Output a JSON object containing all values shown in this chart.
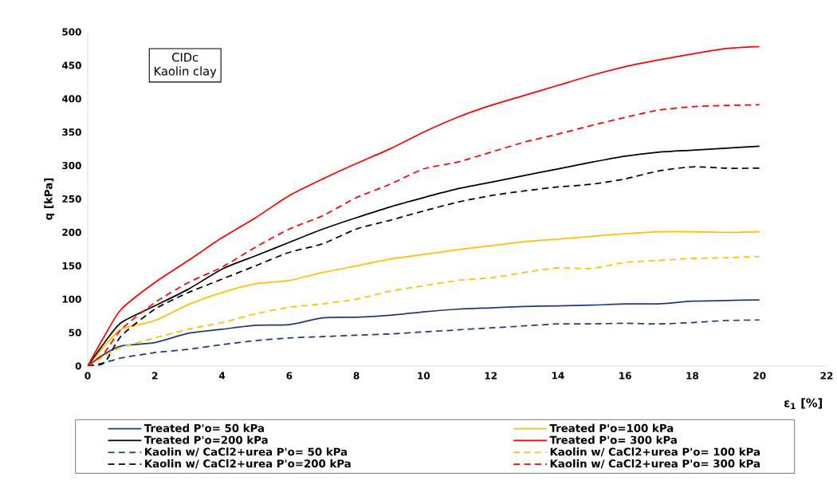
{
  "chart_data": {
    "type": "line",
    "xlabel": "ε$_{1}$ [%]",
    "ylabel": "q  [kPa]",
    "annotations": [
      "CIDc",
      "Kaolin clay"
    ],
    "x": [
      0,
      0.5,
      1,
      2,
      3,
      4,
      5,
      6,
      7,
      8,
      9,
      10,
      11,
      12,
      13,
      14,
      15,
      16,
      17,
      18,
      19,
      20
    ],
    "xlim": [
      0,
      22
    ],
    "xticks": [
      0,
      2,
      4,
      6,
      8,
      10,
      12,
      14,
      16,
      18,
      20,
      22
    ],
    "ylim": [
      0,
      500
    ],
    "yticks": [
      0,
      50,
      100,
      150,
      200,
      250,
      300,
      350,
      400,
      450,
      500
    ],
    "grid": false,
    "legend": "bottom",
    "marker": "none",
    "series": [
      {
        "name": "Treated P'o= 50 kPa",
        "color": "#1f3a7a",
        "line_style": "solid",
        "values": [
          0,
          18,
          30,
          35,
          49,
          55,
          61,
          62,
          72,
          73,
          76,
          81,
          85,
          87,
          89,
          90,
          91,
          93,
          93,
          97,
          98,
          99
        ]
      },
      {
        "name": "Treated P'o=100 kPa",
        "color": "#ffc000",
        "line_style": "solid",
        "values": [
          0,
          30,
          55,
          68,
          92,
          110,
          123,
          128,
          140,
          150,
          160,
          167,
          174,
          180,
          186,
          190,
          194,
          198,
          201,
          201,
          200,
          201
        ]
      },
      {
        "name": "Treated P'o=200 kPa",
        "color": "#000000",
        "line_style": "solid",
        "values": [
          0,
          35,
          65,
          90,
          115,
          145,
          165,
          185,
          205,
          222,
          238,
          252,
          265,
          275,
          285,
          295,
          305,
          314,
          320,
          323,
          326,
          329
        ]
      },
      {
        "name": "Treated   P'o= 300 kPa",
        "color": "#ff0000",
        "line_style": "solid",
        "values": [
          0,
          45,
          85,
          125,
          158,
          192,
          222,
          255,
          280,
          303,
          325,
          350,
          372,
          390,
          405,
          420,
          435,
          448,
          458,
          467,
          475,
          478
        ]
      },
      {
        "name": "Kaolin w/ CaCl2+urea  P'o= 50 kPa",
        "color": "#1f3a7a",
        "line_style": "dashed",
        "values": [
          0,
          5,
          12,
          20,
          25,
          32,
          38,
          42,
          44,
          46,
          48,
          51,
          54,
          57,
          60,
          63,
          63,
          64,
          63,
          65,
          68,
          69
        ]
      },
      {
        "name": "Kaolin w/ CaCl2+urea  P'o= 100 kPa",
        "color": "#ffc000",
        "line_style": "dashed",
        "values": [
          0,
          15,
          28,
          42,
          55,
          65,
          78,
          88,
          93,
          100,
          112,
          120,
          128,
          132,
          140,
          147,
          146,
          155,
          158,
          161,
          162,
          164
        ]
      },
      {
        "name": "Kaolin w/ CaCl2+urea  P'o=200 kPa",
        "color": "#000000",
        "line_style": "dashed",
        "values": [
          0,
          5,
          45,
          85,
          110,
          130,
          150,
          170,
          183,
          205,
          218,
          232,
          245,
          255,
          262,
          268,
          272,
          280,
          292,
          298,
          296,
          296
        ]
      },
      {
        "name": "Kaolin w/ CaCl2+urea  P'o= 300 kPa",
        "color": "#ff0000",
        "line_style": "dashed",
        "values": [
          0,
          20,
          55,
          95,
          125,
          148,
          178,
          205,
          225,
          252,
          272,
          295,
          305,
          320,
          335,
          347,
          360,
          372,
          383,
          388,
          390,
          391
        ]
      }
    ]
  }
}
